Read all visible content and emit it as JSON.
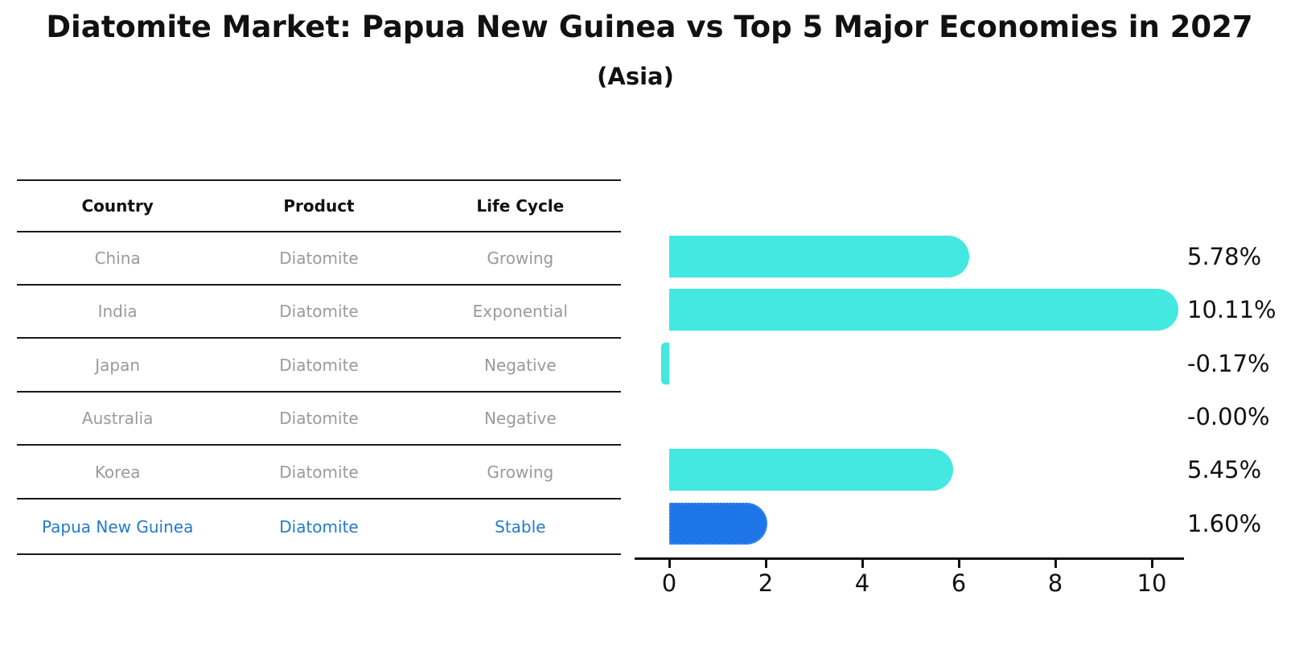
{
  "header": {
    "title": "Diatomite Market: Papua New Guinea vs Top 5 Major Economies in 2027",
    "subtitle": "(Asia)"
  },
  "table": {
    "headers": [
      "Country",
      "Product",
      "Life Cycle"
    ],
    "rows": [
      {
        "country": "China",
        "product": "Diatomite",
        "life_cycle": "Growing",
        "highlighted": false
      },
      {
        "country": "India",
        "product": "Diatomite",
        "life_cycle": "Exponential",
        "highlighted": false
      },
      {
        "country": "Japan",
        "product": "Diatomite",
        "life_cycle": "Negative",
        "highlighted": false
      },
      {
        "country": "Australia",
        "product": "Diatomite",
        "life_cycle": "Negative",
        "highlighted": false
      },
      {
        "country": "Korea",
        "product": "Diatomite",
        "life_cycle": "Growing",
        "highlighted": false
      },
      {
        "country": "Papua New Guinea",
        "product": "Diatomite",
        "life_cycle": "Stable",
        "highlighted": true
      }
    ]
  },
  "chart_data": {
    "type": "bar",
    "orientation": "horizontal",
    "title": "Diatomite Market: Papua New Guinea vs Top 5 Major Economies in 2027",
    "subtitle": "(Asia)",
    "categories": [
      "China",
      "India",
      "Japan",
      "Australia",
      "Korea",
      "Papua New Guinea"
    ],
    "values": [
      5.78,
      10.11,
      -0.17,
      -0.0,
      5.45,
      1.6
    ],
    "value_labels": [
      "5.78%",
      "10.11%",
      "-0.17%",
      "-0.00%",
      "5.45%",
      "1.60%"
    ],
    "x_ticks": [
      0,
      2,
      4,
      6,
      8,
      10
    ],
    "xlim": [
      -0.7,
      10.7
    ],
    "xlabel": "",
    "ylabel": "",
    "grid": false,
    "legend": "none",
    "highlight_index": 5,
    "colors": {
      "bar": "#43e8e0",
      "highlight_bar": "#1e76e6",
      "highlight_border": "#3f8cf3",
      "axis": "#111111",
      "value_label": "#111111",
      "table_text": "#9a9a9a",
      "table_header_text": "#111111",
      "highlight_text": "#2479cc"
    }
  }
}
